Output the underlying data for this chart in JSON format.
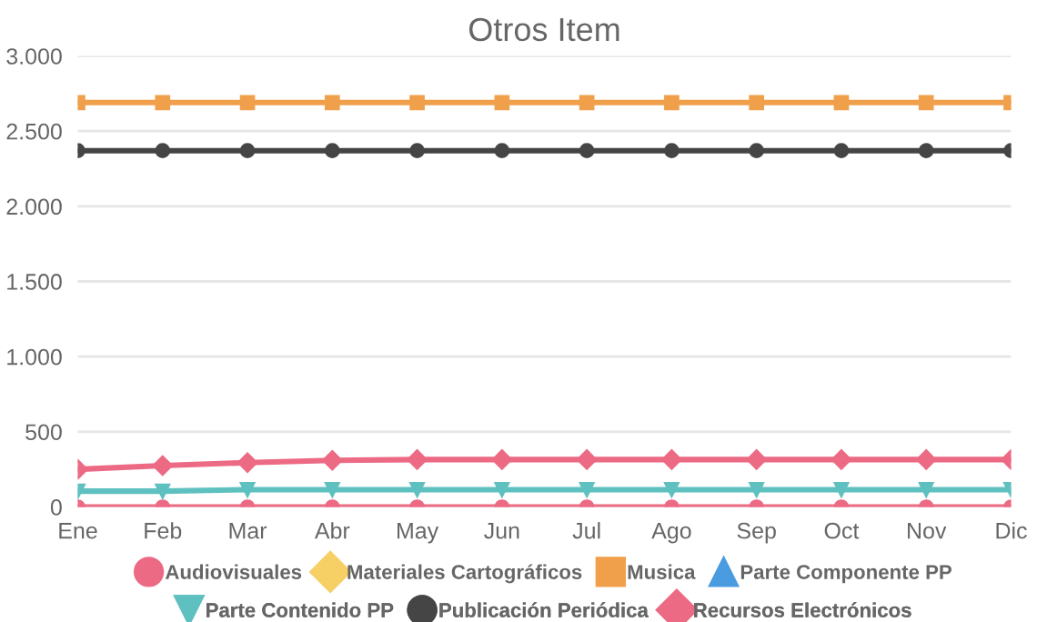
{
  "chart_data": {
    "type": "line",
    "title": "Otros Item",
    "categories": [
      "Ene",
      "Feb",
      "Mar",
      "Abr",
      "May",
      "Jun",
      "Jul",
      "Ago",
      "Sep",
      "Oct",
      "Nov",
      "Dic"
    ],
    "series": [
      {
        "name": "Audiovisuales",
        "color": "#ec6a84",
        "marker": "circle",
        "values": [
          0,
          0,
          0,
          0,
          0,
          0,
          0,
          0,
          0,
          0,
          0,
          0
        ]
      },
      {
        "name": "Materiales Cartográficos",
        "color": "#f6cf65",
        "marker": "diamond",
        "values": [
          null,
          null,
          null,
          null,
          null,
          null,
          null,
          null,
          null,
          null,
          null,
          null
        ]
      },
      {
        "name": "Musica",
        "color": "#f0a04b",
        "marker": "square",
        "values": [
          2690,
          2690,
          2690,
          2690,
          2690,
          2690,
          2690,
          2690,
          2690,
          2690,
          2690,
          2690
        ]
      },
      {
        "name": "Parte Componente PP",
        "color": "#4a9be0",
        "marker": "triangle",
        "values": [
          null,
          null,
          null,
          null,
          null,
          null,
          null,
          null,
          null,
          null,
          null,
          null
        ]
      },
      {
        "name": "Parte Contenido PP",
        "color": "#5fc0c0",
        "marker": "triangle_down",
        "values": [
          105,
          105,
          115,
          115,
          115,
          115,
          115,
          115,
          115,
          115,
          115,
          115
        ]
      },
      {
        "name": "Publicación Periódica",
        "color": "#454545",
        "marker": "circle",
        "values": [
          2370,
          2370,
          2370,
          2370,
          2370,
          2370,
          2370,
          2370,
          2370,
          2370,
          2370,
          2370
        ]
      },
      {
        "name": "Recursos Electrónicos",
        "color": "#ec6a84",
        "marker": "diamond",
        "values": [
          250,
          275,
          295,
          310,
          315,
          315,
          315,
          315,
          315,
          315,
          315,
          315
        ]
      }
    ],
    "ylim": [
      0,
      3000
    ],
    "yticks": [
      {
        "value": 0,
        "label": "0"
      },
      {
        "value": 500,
        "label": "500"
      },
      {
        "value": 1000,
        "label": "1.000"
      },
      {
        "value": 1500,
        "label": "1.500"
      },
      {
        "value": 2000,
        "label": "2.000"
      },
      {
        "value": 2500,
        "label": "2.500"
      },
      {
        "value": 3000,
        "label": "3.000"
      }
    ],
    "grid": "y",
    "legend": "bottom",
    "line_style": "solid"
  }
}
